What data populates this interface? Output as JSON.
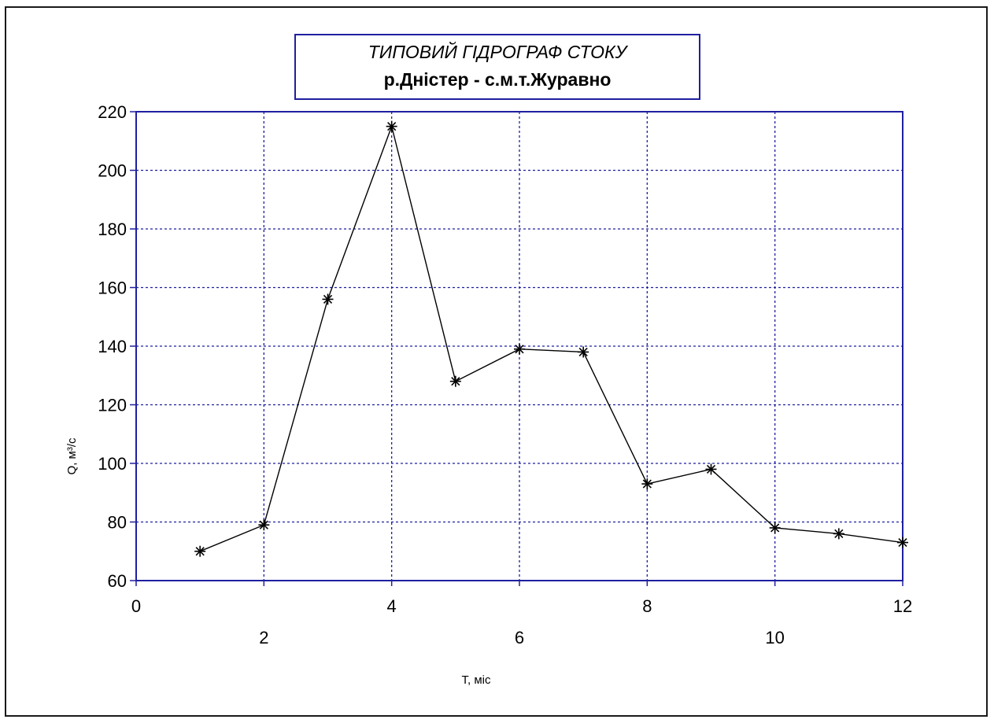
{
  "chart_data": {
    "type": "line",
    "title": "ТИПОВИЙ ГІДРОГРАФ СТОКУ",
    "subtitle": "р.Дністер - с.м.т.Журавно",
    "xlabel": "Т, міс",
    "ylabel": "Q, м³/с",
    "xlim": [
      0,
      12
    ],
    "ylim": [
      60,
      220
    ],
    "x_ticks_top": [
      "0",
      "4",
      "8",
      "12"
    ],
    "x_ticks_bottom": [
      "2",
      "6",
      "10"
    ],
    "y_ticks": [
      "60",
      "80",
      "100",
      "120",
      "140",
      "160",
      "180",
      "200",
      "220"
    ],
    "grid": true,
    "marker": "asterisk",
    "series": [
      {
        "x": [
          1,
          2,
          3,
          4,
          5,
          6,
          7,
          8,
          9,
          10,
          11,
          12
        ],
        "y": [
          70,
          79,
          156,
          215,
          128,
          139,
          138,
          93,
          98,
          78,
          76,
          73
        ]
      }
    ],
    "colors": {
      "axes": "#1f1fa0",
      "grid": "#1f1fa0",
      "line": "#000000"
    }
  }
}
